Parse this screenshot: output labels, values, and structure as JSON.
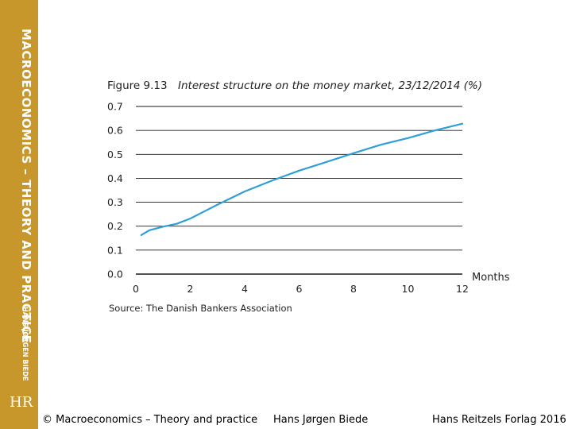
{
  "sidebar": {
    "title": "MACROECONOMICS – THEORY AND PRACTICE",
    "author": "HANS JØRGEN BIEDE",
    "logo": "HR"
  },
  "footer": {
    "copyright": "© Macroeconomics – Theory and practice",
    "author": "Hans Jørgen Biede",
    "publisher": "Hans Reitzels Forlag 2016"
  },
  "figure": {
    "number": "Figure 9.13",
    "title": "Interest structure on the money market, 23/12/2014 (%)",
    "source": "Source: The Danish Bankers Association"
  },
  "colors": {
    "line": "#2e9fd8",
    "grid": "#1a1a1a",
    "sidebar": "#c8972b"
  },
  "chart_data": {
    "type": "line",
    "title": "Interest structure on the money market, 23/12/2014 (%)",
    "xlabel": "Months",
    "ylabel": "",
    "xlim": [
      0,
      12
    ],
    "ylim": [
      0,
      0.7
    ],
    "xticks": [
      "0",
      "2",
      "4",
      "6",
      "8",
      "10",
      "12"
    ],
    "yticks": [
      "0.0",
      "0.1",
      "0.2",
      "0.3",
      "0.4",
      "0.5",
      "0.6",
      "0.7"
    ],
    "grid": "horizontal",
    "legend": "none",
    "series": [
      {
        "x": [
          0.2,
          0.5,
          1,
          1.5,
          2,
          3,
          4,
          5,
          6,
          7,
          8,
          9,
          10,
          11,
          12
        ],
        "y": [
          0.163,
          0.183,
          0.198,
          0.21,
          0.232,
          0.29,
          0.345,
          0.39,
          0.432,
          0.468,
          0.505,
          0.54,
          0.568,
          0.6,
          0.628
        ]
      }
    ]
  }
}
